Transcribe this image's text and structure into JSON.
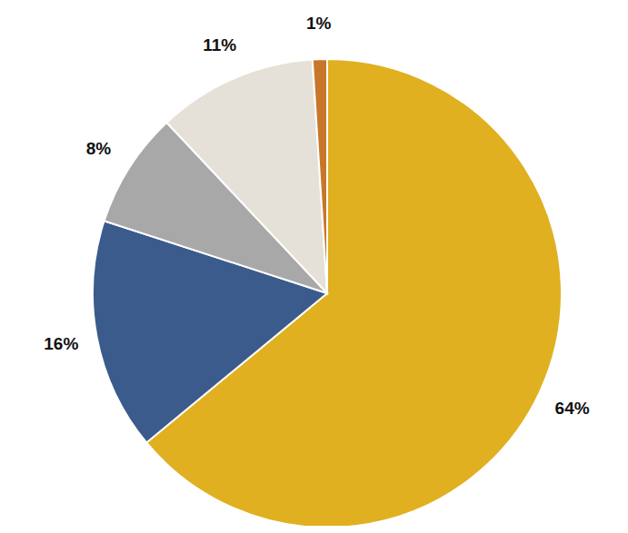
{
  "chart_data": {
    "type": "pie",
    "values": [
      64,
      16,
      8,
      11,
      1
    ],
    "value_labels": [
      "64%",
      "16%",
      "8%",
      "11%",
      "1%"
    ],
    "colors": [
      "#e0b020",
      "#3b5b8c",
      "#a8a8a8",
      "#e6e1d8",
      "#c8772a"
    ],
    "data_labels": true
  }
}
